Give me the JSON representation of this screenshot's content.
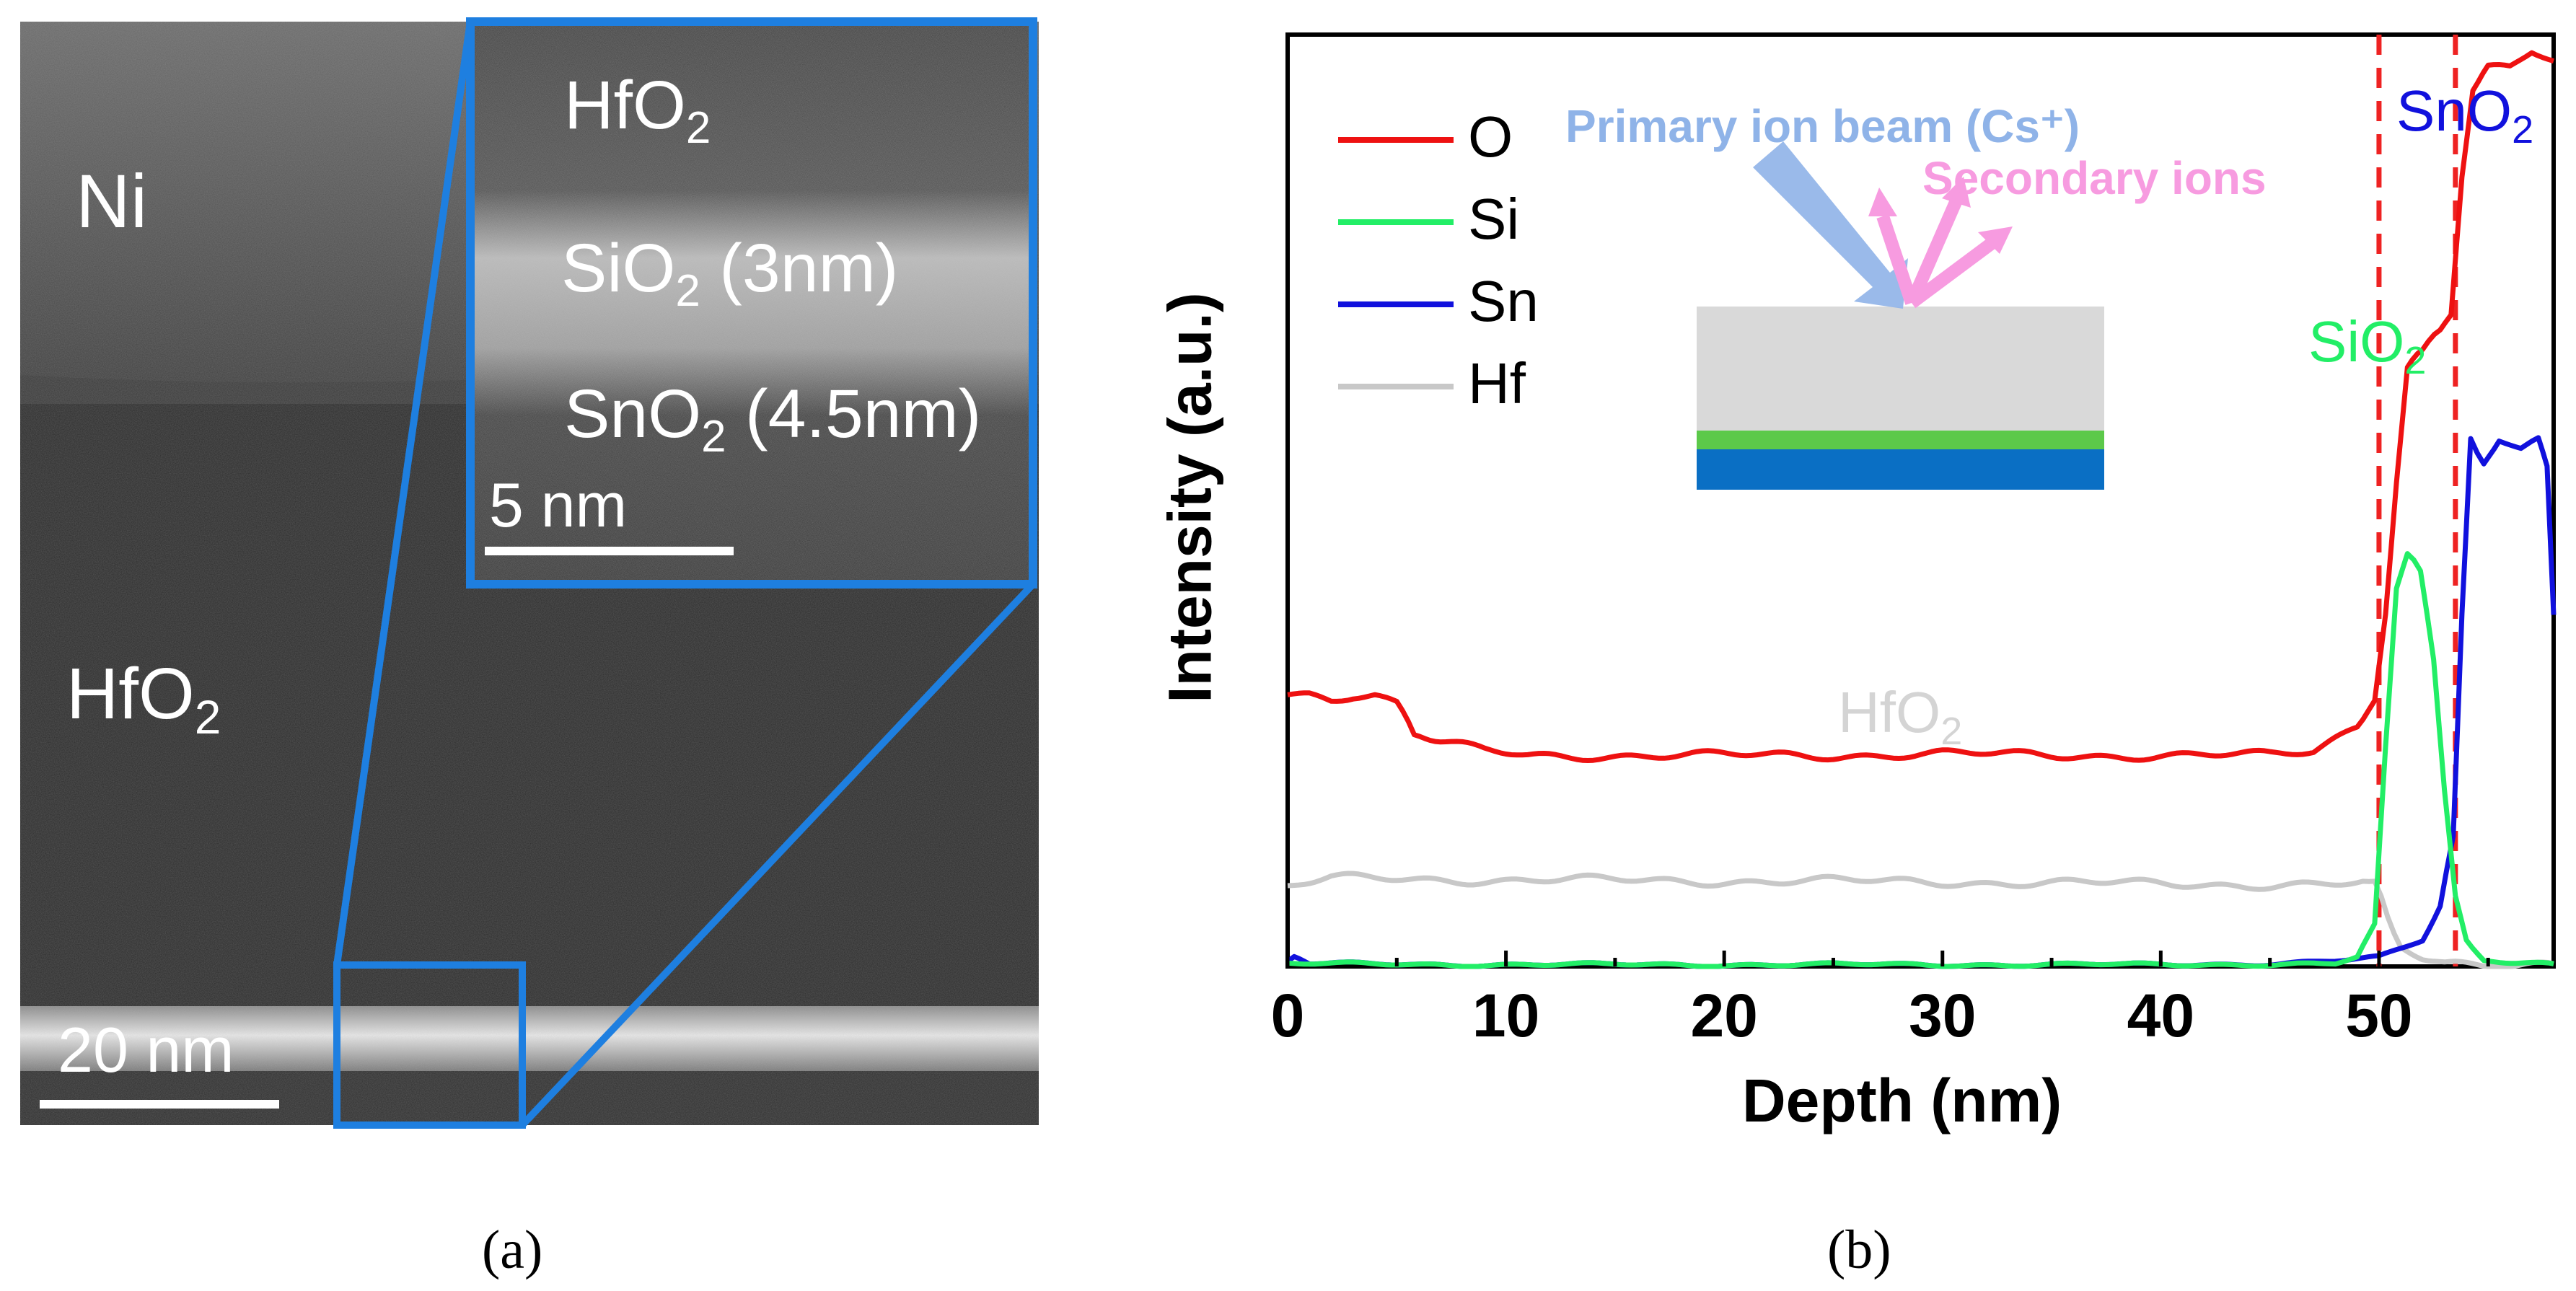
{
  "panel_a": {
    "caption": "(a)",
    "labels": {
      "ni": "Ni",
      "hfo2": "HfO",
      "hfo2_sub": "2",
      "scale_bar": "20 nm"
    },
    "inset": {
      "hfo2": "HfO",
      "hfo2_sub": "2",
      "sio2_a": "SiO",
      "sio2_sub": "2",
      "sio2_b": "(3nm)",
      "sno2_a": "SnO",
      "sno2_sub": "2",
      "sno2_b": "(4.5nm)",
      "scale_bar": "5 nm"
    },
    "colors": {
      "frame": "#1e7fe0",
      "tem_dark": "#2a2a2a",
      "band": "#d8d8d8"
    }
  },
  "panel_b": {
    "caption": "(b)",
    "inset": {
      "primary_beam": "Primary ion beam (Cs⁺)",
      "secondary_ions": "Secondary ions",
      "colors": {
        "beam": "#8fb3e8",
        "secondary": "#f79be0",
        "top_layer": "#d9d9d9",
        "mid_layer": "#5cc94a",
        "bottom_layer": "#0a6fc4"
      }
    },
    "region_labels": {
      "sno2": "SnO",
      "sno2_sub": "2",
      "sio2": "SiO",
      "sio2_sub": "2",
      "hfo2": "HfO",
      "hfo2_sub": "2"
    }
  },
  "chart_data": {
    "type": "line",
    "title": "",
    "xlabel": "Depth (nm)",
    "ylabel": "Intensity (a.u.)",
    "xlim": [
      0,
      58
    ],
    "ylim": [
      0,
      1.06
    ],
    "x_ticks": [
      0,
      10,
      20,
      30,
      40,
      50
    ],
    "vlines": [
      50,
      53.5
    ],
    "vline_color": "#ee2222",
    "legend_position": "top-left",
    "series": [
      {
        "name": "O",
        "color": "#ee1111",
        "points": [
          [
            0,
            0.31
          ],
          [
            1,
            0.31
          ],
          [
            2,
            0.305
          ],
          [
            3,
            0.31
          ],
          [
            4,
            0.31
          ],
          [
            5,
            0.3
          ],
          [
            5.8,
            0.26
          ],
          [
            7,
            0.255
          ],
          [
            9,
            0.245
          ],
          [
            11,
            0.24
          ],
          [
            15,
            0.24
          ],
          [
            20,
            0.24
          ],
          [
            25,
            0.24
          ],
          [
            30,
            0.242
          ],
          [
            35,
            0.24
          ],
          [
            40,
            0.24
          ],
          [
            45,
            0.24
          ],
          [
            47,
            0.245
          ],
          [
            48,
            0.26
          ],
          [
            49,
            0.275
          ],
          [
            49.8,
            0.3
          ],
          [
            50.3,
            0.4
          ],
          [
            50.8,
            0.55
          ],
          [
            51.3,
            0.68
          ],
          [
            52,
            0.7
          ],
          [
            52.8,
            0.72
          ],
          [
            53.3,
            0.74
          ],
          [
            53.8,
            0.9
          ],
          [
            54.3,
            1.0
          ],
          [
            55,
            1.02
          ],
          [
            56,
            1.02
          ],
          [
            57,
            1.04
          ],
          [
            58,
            1.03
          ]
        ]
      },
      {
        "name": "Si",
        "color": "#22ee66",
        "points": [
          [
            0,
            0.003
          ],
          [
            10,
            0.002
          ],
          [
            20,
            0.002
          ],
          [
            30,
            0.002
          ],
          [
            40,
            0.002
          ],
          [
            48,
            0.003
          ],
          [
            49,
            0.01
          ],
          [
            49.8,
            0.05
          ],
          [
            50.3,
            0.25
          ],
          [
            50.8,
            0.43
          ],
          [
            51.3,
            0.47
          ],
          [
            51.9,
            0.45
          ],
          [
            52.5,
            0.35
          ],
          [
            53,
            0.2
          ],
          [
            53.5,
            0.08
          ],
          [
            54,
            0.03
          ],
          [
            54.8,
            0.005
          ],
          [
            58,
            0.003
          ]
        ]
      },
      {
        "name": "Sn",
        "color": "#1111dd",
        "points": [
          [
            0,
            0.005
          ],
          [
            0.3,
            0.01
          ],
          [
            1,
            0.003
          ],
          [
            10,
            0.002
          ],
          [
            20,
            0.002
          ],
          [
            30,
            0.002
          ],
          [
            40,
            0.002
          ],
          [
            45,
            0.003
          ],
          [
            48,
            0.006
          ],
          [
            50,
            0.01
          ],
          [
            51,
            0.02
          ],
          [
            52,
            0.03
          ],
          [
            52.8,
            0.07
          ],
          [
            53.4,
            0.15
          ],
          [
            53.8,
            0.4
          ],
          [
            54.2,
            0.6
          ],
          [
            54.8,
            0.57
          ],
          [
            55.5,
            0.6
          ],
          [
            56.5,
            0.59
          ],
          [
            57.3,
            0.6
          ],
          [
            57.7,
            0.57
          ],
          [
            58,
            0.4
          ]
        ]
      },
      {
        "name": "Hf",
        "color": "#c8c8c8",
        "points": [
          [
            0,
            0.09
          ],
          [
            1,
            0.095
          ],
          [
            2,
            0.1
          ],
          [
            5,
            0.1
          ],
          [
            10,
            0.098
          ],
          [
            15,
            0.098
          ],
          [
            20,
            0.097
          ],
          [
            25,
            0.097
          ],
          [
            30,
            0.096
          ],
          [
            35,
            0.095
          ],
          [
            40,
            0.094
          ],
          [
            45,
            0.093
          ],
          [
            49,
            0.093
          ],
          [
            49.8,
            0.1
          ],
          [
            50.4,
            0.06
          ],
          [
            51,
            0.02
          ],
          [
            52,
            0.01
          ],
          [
            53,
            0.005
          ],
          [
            58,
            0.003
          ]
        ]
      }
    ]
  }
}
